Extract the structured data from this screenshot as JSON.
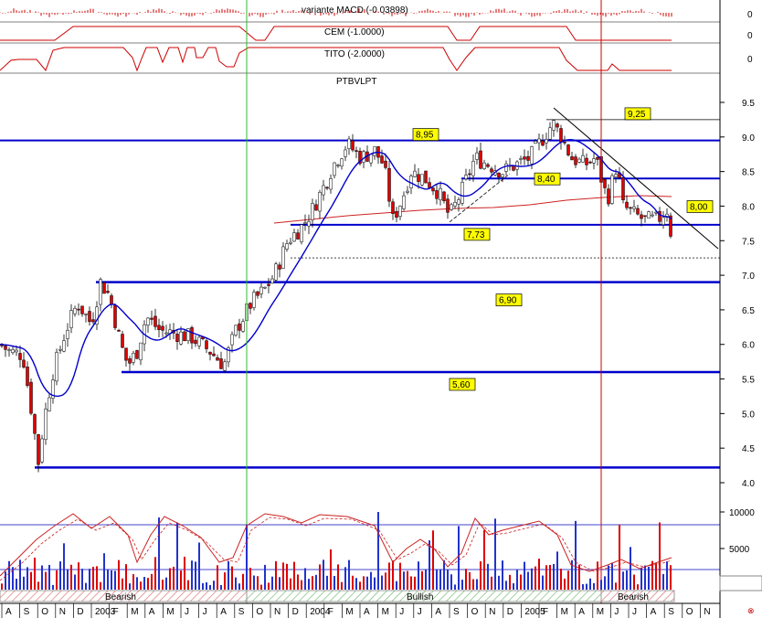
{
  "chart_data": [
    {
      "type": "line",
      "panel": "indicator",
      "title": "variante MACD (-0.03898)",
      "axis_label": "0",
      "color": "#c00000"
    },
    {
      "type": "line",
      "panel": "indicator",
      "title": "CEM (-1.0000)",
      "axis_label": "0",
      "color": "#c00000"
    },
    {
      "type": "line",
      "panel": "indicator",
      "title": "TITO (-2.0000)",
      "axis_label": "0",
      "color": "#c00000"
    },
    {
      "type": "line",
      "panel": "price",
      "title": "PTBVLPT",
      "ylim": [
        3.85,
        9.85
      ],
      "y_ticks": [
        "9.5",
        "9.0",
        "8.5",
        "8.0",
        "7.5",
        "7.0",
        "6.5",
        "6.0",
        "5.5",
        "5.0",
        "4.5",
        "4.0"
      ],
      "y_tick_values": [
        9.5,
        9.0,
        8.5,
        8.0,
        7.5,
        7.0,
        6.5,
        6.0,
        5.5,
        5.0,
        4.5,
        4.0
      ],
      "moving_average_color": "#0000cc",
      "long_average_color": "#cc2222",
      "up_color": "#ffffff",
      "down_color": "#dd0000",
      "levels": [
        {
          "value": 8.95,
          "label": "8,95",
          "line": true
        },
        {
          "value": 9.25,
          "label": "9,25",
          "line": true
        },
        {
          "value": 8.4,
          "label": "8,40",
          "line": true
        },
        {
          "value": 8.0,
          "label": "8,00",
          "line": false
        },
        {
          "value": 7.73,
          "label": "7,73",
          "line": true
        },
        {
          "value": 6.9,
          "label": "6,90",
          "line": true
        },
        {
          "value": 5.6,
          "label": "5,60",
          "line": true
        },
        {
          "value": 4.22,
          "label": "",
          "line": true
        }
      ],
      "dotted_level": 7.25,
      "series": [
        {
          "x": [
            0,
            4,
            8,
            12,
            16,
            20,
            24,
            28,
            32,
            36,
            40,
            44,
            48,
            52,
            56,
            60,
            64,
            68,
            72,
            76,
            80,
            84,
            88,
            92,
            96,
            100,
            104,
            108,
            112,
            116,
            120,
            124,
            128,
            132,
            136,
            140,
            144,
            148,
            152,
            156,
            160,
            164,
            168,
            172,
            176,
            180,
            184,
            188,
            192,
            196,
            200,
            204,
            208,
            212,
            216,
            220,
            224,
            228,
            232,
            236,
            240,
            244,
            248,
            252,
            256,
            260,
            264,
            268,
            272,
            276,
            280,
            284,
            288,
            292,
            296,
            300,
            304,
            308,
            312,
            316,
            320,
            324,
            328,
            332,
            336,
            340,
            344,
            348,
            352,
            356,
            360,
            364,
            368,
            372,
            376,
            380,
            384,
            388,
            392,
            396,
            400,
            404,
            408,
            412,
            416,
            420,
            424,
            428,
            432,
            436,
            440,
            444,
            448,
            452,
            456,
            460,
            464,
            468,
            472,
            476,
            480,
            484,
            488,
            492,
            496,
            500,
            504,
            508,
            512,
            516,
            520,
            524,
            528,
            532,
            536,
            540,
            544,
            548,
            552,
            556,
            560,
            564,
            568,
            572,
            576,
            580,
            584,
            588,
            592,
            596,
            600,
            604,
            608,
            612,
            616,
            620,
            624,
            628,
            632,
            636,
            640,
            644,
            648,
            652,
            656,
            660,
            664,
            668,
            672,
            676,
            680,
            684,
            688,
            692,
            696,
            700,
            704,
            708,
            712,
            716,
            720,
            724,
            728,
            732,
            736
          ],
          "values": [
            6.0,
            6.1,
            5.95,
            6.1,
            5.9,
            5.7,
            5.5,
            5.1,
            4.7,
            4.4,
            4.7,
            5.1,
            5.4,
            5.6,
            5.8,
            6.0,
            6.2,
            6.4,
            6.55,
            6.75,
            6.85,
            6.8,
            6.7,
            6.5,
            6.3,
            6.2,
            6.15,
            6.05,
            5.9,
            5.75,
            5.7,
            5.75,
            5.9,
            6.05,
            6.2,
            6.3,
            6.35,
            6.3,
            6.25,
            6.2,
            6.15,
            6.15,
            6.1,
            6.1,
            6.1,
            6.05,
            6.0,
            5.95,
            5.95,
            5.85,
            5.8,
            5.95,
            6.1,
            6.2,
            6.3,
            6.45,
            6.6,
            6.75,
            6.85,
            6.95,
            7.15,
            7.35,
            7.55,
            7.75,
            7.95,
            8.1,
            8.3,
            8.5,
            8.65,
            8.75,
            8.8,
            8.75,
            8.65,
            8.5,
            8.35,
            8.15,
            7.95,
            7.85,
            7.85,
            8.0,
            8.2,
            8.35,
            8.45,
            8.4,
            8.35,
            8.3,
            8.25,
            8.15,
            8.05,
            7.95,
            7.85,
            7.85,
            7.9,
            8.0,
            8.15,
            8.3,
            8.45,
            8.55,
            8.55,
            8.5,
            8.45,
            8.4,
            8.35,
            8.35,
            8.4,
            8.5,
            8.6,
            8.75,
            8.9,
            9.0,
            9.05,
            8.9,
            8.7,
            8.55,
            8.45,
            8.4,
            8.4,
            8.45,
            8.5,
            8.55,
            8.5,
            8.45,
            8.35,
            8.25,
            8.15,
            8.05,
            7.95,
            7.9,
            7.85,
            7.8,
            7.8,
            7.8,
            7.8,
            7.8,
            7.8,
            7.75,
            7.7,
            7.62,
            7.55,
            7.5,
            7.5,
            7.5,
            7.5,
            7.5,
            7.5,
            7.5,
            7.5,
            7.5,
            7.5,
            7.5,
            7.5,
            7.5,
            7.5,
            7.5,
            7.5,
            7.5,
            7.5,
            7.5,
            7.5,
            7.5,
            7.5,
            7.5,
            7.5,
            7.5,
            7.5,
            7.5,
            7.5,
            7.5,
            7.5,
            7.5,
            7.5,
            7.5,
            7.5,
            7.5,
            7.5,
            7.5,
            7.5,
            7.5,
            7.5,
            7.5,
            7.5,
            7.5,
            7.5,
            7.5,
            7.5
          ]
        }
      ]
    },
    {
      "type": "bar",
      "panel": "volume",
      "ylim": [
        0,
        11000
      ],
      "y_ticks": [
        "10000",
        "5000"
      ],
      "y_tick_values": [
        10000,
        5000
      ],
      "regime_labels": [
        "Bearish",
        "Bullish",
        "Bearish"
      ]
    }
  ],
  "x_axis": {
    "tick_labels": [
      "A",
      "S",
      "O",
      "N",
      "D",
      "2003",
      "F",
      "M",
      "A",
      "M",
      "J",
      "J",
      "A",
      "S",
      "O",
      "N",
      "D",
      "2004",
      "F",
      "M",
      "A",
      "M",
      "J",
      "J",
      "A",
      "S",
      "O",
      "N",
      "D",
      "2005",
      "F",
      "M",
      "A",
      "M",
      "J",
      "J",
      "A",
      "S",
      "O",
      "N"
    ]
  },
  "annotations": {
    "green_divider": "2003-S",
    "red_divider": "2005-A"
  }
}
